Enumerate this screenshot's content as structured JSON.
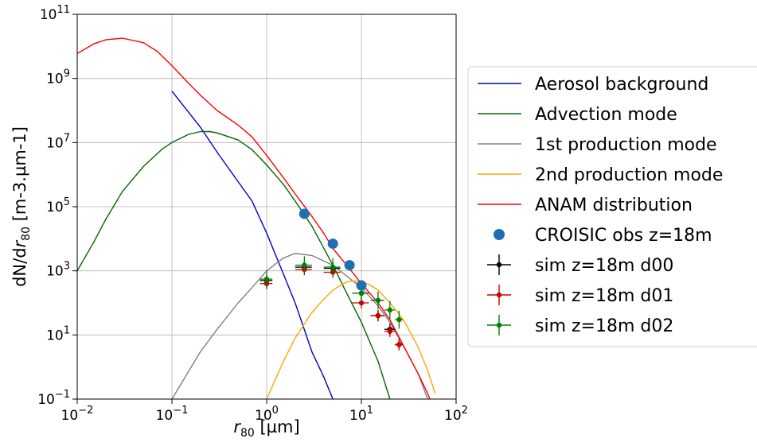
{
  "chart_data": {
    "type": "line",
    "xlabel": "r80 [µm]",
    "ylabel": "dN/dr80 [m-3.µm-1]",
    "xscale": "log",
    "yscale": "log",
    "xlim": [
      0.01,
      100
    ],
    "ylim": [
      0.1,
      100000000000
    ],
    "grid": true,
    "legend_placement": "right",
    "x_ticks": [
      {
        "base": "10",
        "exp": "−2"
      },
      {
        "base": "10",
        "exp": "−1"
      },
      {
        "base": "10",
        "exp": "0"
      },
      {
        "base": "10",
        "exp": "1"
      },
      {
        "base": "10",
        "exp": "2"
      }
    ],
    "y_ticks": [
      {
        "base": "10",
        "exp": "−1"
      },
      {
        "base": "10",
        "exp": "1"
      },
      {
        "base": "10",
        "exp": "3"
      },
      {
        "base": "10",
        "exp": "5"
      },
      {
        "base": "10",
        "exp": "7"
      },
      {
        "base": "10",
        "exp": "9"
      },
      {
        "base": "10",
        "exp": "11"
      }
    ],
    "curves": [
      {
        "name": "Aerosol background",
        "color": "#0000cc",
        "x": [
          0.1,
          0.2,
          0.3,
          0.5,
          0.7,
          1,
          1.5,
          2,
          3,
          4,
          5
        ],
        "y": [
          400000000.0,
          30000000.0,
          5000000.0,
          600000.0,
          150000.0,
          15000.0,
          800.0,
          100.0,
          3,
          0.5,
          0.1
        ]
      },
      {
        "name": "Advection mode",
        "color": "#006600",
        "x": [
          0.01,
          0.015,
          0.02,
          0.03,
          0.05,
          0.08,
          0.1,
          0.15,
          0.2,
          0.25,
          0.3,
          0.5,
          0.7,
          1,
          1.5,
          2,
          3,
          5,
          7,
          10,
          15,
          20
        ],
        "y": [
          1000,
          8000,
          40000.0,
          300000.0,
          1800000.0,
          6500000.0,
          10000000.0,
          18000000.0,
          22000000.0,
          22000000.0,
          20000000.0,
          12000000.0,
          6000000.0,
          2000000.0,
          500000.0,
          150000.0,
          25000.0,
          1500,
          200,
          25,
          1.5,
          0.1
        ]
      },
      {
        "name": "1st production mode",
        "color": "#808080",
        "x": [
          0.1,
          0.2,
          0.3,
          0.5,
          0.7,
          1,
          1.5,
          2,
          3,
          5,
          10,
          15,
          20,
          30,
          40,
          50
        ],
        "y": [
          0.1,
          3,
          15,
          100,
          300,
          1000,
          2500,
          3500,
          3000,
          1500,
          300,
          80,
          25,
          3,
          0.6,
          0.1
        ]
      },
      {
        "name": "2nd production mode",
        "color": "#ffa500",
        "x": [
          1,
          1.5,
          2,
          3,
          4,
          5,
          6,
          7,
          8,
          9,
          10,
          12,
          15,
          20,
          25,
          30,
          40,
          50,
          60
        ],
        "y": [
          0.1,
          1.5,
          8,
          50,
          130,
          250,
          350,
          450,
          480,
          480,
          450,
          380,
          250,
          100,
          45,
          20,
          4,
          0.8,
          0.15
        ]
      },
      {
        "name": "ANAM distribution",
        "color": "#ff0000",
        "x": [
          0.01,
          0.015,
          0.02,
          0.03,
          0.05,
          0.07,
          0.1,
          0.15,
          0.2,
          0.3,
          0.5,
          0.7,
          1,
          1.5,
          2,
          3,
          4,
          5,
          7,
          10,
          15,
          20,
          30,
          40,
          50,
          60
        ],
        "y": [
          6000000000.0,
          12000000000.0,
          16000000000.0,
          18000000000.0,
          13000000000.0,
          7000000000.0,
          2500000000.0,
          700000000.0,
          300000000.0,
          100000000.0,
          35000000.0,
          15000000.0,
          4000000.0,
          800000.0,
          250000.0,
          50000.0,
          15000.0,
          5000,
          1500,
          400,
          100,
          30,
          3,
          0.6,
          0.15,
          0.04
        ]
      }
    ],
    "observations": {
      "name": "CROISIC obs z=18m",
      "color": "#1f6fb4",
      "x": [
        2.5,
        5,
        7.5,
        10
      ],
      "y": [
        60000,
        7000,
        1500,
        350
      ]
    },
    "simulations": [
      {
        "name": "sim z=18m d00",
        "color": "#000000",
        "x": [
          1,
          2.5,
          5,
          10,
          15,
          20,
          25
        ],
        "y": [
          500,
          1300,
          1200,
          200,
          40,
          15,
          5
        ],
        "xerr": [
          0.15,
          0.5,
          1,
          2,
          2.5,
          2.5,
          2.5
        ],
        "yerr_factor": 1.5
      },
      {
        "name": "sim z=18m d01",
        "color": "#cc0000",
        "x": [
          1,
          2.5,
          5,
          10,
          15,
          20,
          25
        ],
        "y": [
          400,
          1100,
          900,
          100,
          40,
          13,
          5
        ],
        "xerr": [
          0.15,
          0.5,
          1,
          2,
          2.5,
          2.5,
          2.5
        ],
        "yerr_factor": 1.5
      },
      {
        "name": "sim z=18m d02",
        "color": "#008000",
        "x": [
          1,
          2.5,
          5,
          10,
          15,
          20,
          25
        ],
        "y": [
          550,
          1500,
          1300,
          200,
          120,
          60,
          30
        ],
        "xerr": [
          0.15,
          0.5,
          1,
          2,
          2.5,
          2.5,
          2.5
        ],
        "yerr_factor": 1.9
      }
    ]
  },
  "legend": [
    {
      "label": "Aerosol background",
      "kind": "line",
      "color": "#0000cc"
    },
    {
      "label": "Advection mode",
      "kind": "line",
      "color": "#006600"
    },
    {
      "label": "1st production mode",
      "kind": "line",
      "color": "#808080"
    },
    {
      "label": "2nd production mode",
      "kind": "line",
      "color": "#ffa500"
    },
    {
      "label": "ANAM distribution",
      "kind": "line",
      "color": "#ff0000"
    },
    {
      "label": "CROISIC obs z=18m",
      "kind": "dot",
      "color": "#1f6fb4"
    },
    {
      "label": "sim z=18m d00",
      "kind": "errorbar",
      "color": "#000000"
    },
    {
      "label": "sim z=18m d01",
      "kind": "errorbar",
      "color": "#cc0000"
    },
    {
      "label": "sim z=18m d02",
      "kind": "errorbar",
      "color": "#008000"
    }
  ],
  "axis_titles": {
    "x_sym": "r",
    "x_sub": "80",
    "x_unit": " [µm]",
    "y_pre": "dN/d",
    "y_sym": "r",
    "y_sub": "80",
    "y_unit": " [m-3.µm-1]"
  }
}
